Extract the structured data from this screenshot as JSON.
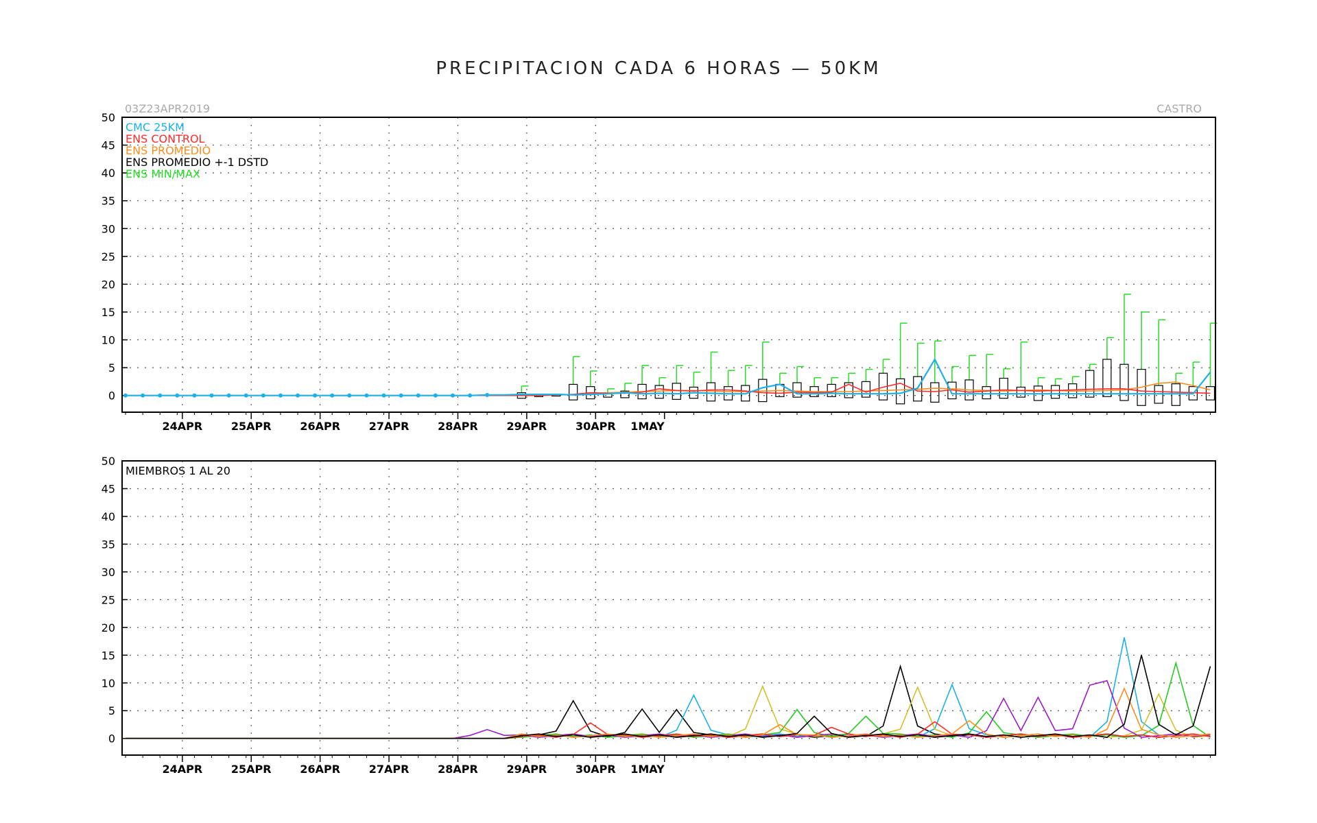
{
  "title": "PRECIPITACION CADA 6 HORAS — 50KM",
  "run_label": "03Z23APR2019",
  "location": "CASTRO",
  "colors": {
    "cmc": "#1ab0e8",
    "control": "#ff2a2a",
    "promedio": "#ff8c1a",
    "dstd": "#000000",
    "minmax": "#22dd22",
    "members": [
      "#000000",
      "#1ab0e8",
      "#d4c02a",
      "#22cc22",
      "#9a1ac8",
      "#ff2a2a",
      "#ff8c1a",
      "#000000",
      "#22cc22",
      "#1ab0e8"
    ]
  },
  "chart_data": [
    {
      "type": "line",
      "panel": "top",
      "ylim": [
        -3,
        50
      ],
      "yticks": [
        0,
        5,
        10,
        15,
        20,
        25,
        30,
        35,
        40,
        45,
        50
      ],
      "xticks": [
        "24APR",
        "25APR",
        "26APR",
        "27APR",
        "28APR",
        "29APR",
        "30APR",
        "1MAY"
      ],
      "x_start": "23APR 03Z",
      "x_step_hours": 6,
      "grid": true,
      "legend": [
        {
          "label": "CMC 25KM",
          "key": "cmc"
        },
        {
          "label": "ENS CONTROL",
          "key": "control"
        },
        {
          "label": "ENS PROMEDIO",
          "key": "promedio"
        },
        {
          "label": "ENS PROMEDIO +-1 DSTD",
          "key": "dstd"
        },
        {
          "label": "ENS MIN/MAX",
          "key": "minmax"
        }
      ],
      "legend_position": "top-left",
      "series": {
        "cmc": [
          0,
          0,
          0,
          0,
          0,
          0,
          0,
          0,
          0,
          0,
          0,
          0,
          0,
          0,
          0,
          0,
          0,
          0,
          0,
          0,
          0,
          0.1,
          0.1,
          0.2,
          0.2,
          0.2,
          0.1,
          0.2,
          0.3,
          0.5,
          0.3,
          0.4,
          0.3,
          0.5,
          0.4,
          0.3,
          0.3,
          1.4,
          2.0,
          0.3,
          0.3,
          0.4,
          0.3,
          0.3,
          0.3,
          0.4,
          1.3,
          6.5,
          0.3,
          0.3,
          0.3,
          0.3,
          0.3,
          0.3,
          0.3,
          0.3,
          0.3,
          0.3,
          0.3,
          0.3,
          0.3,
          0.3,
          0.3,
          4.2
        ],
        "control": [
          0,
          0,
          0,
          0,
          0,
          0,
          0,
          0,
          0,
          0,
          0,
          0,
          0,
          0,
          0,
          0,
          0,
          0,
          0,
          0,
          0,
          0,
          0,
          0,
          0,
          0.1,
          0.2,
          0.5,
          0.4,
          0.4,
          0.6,
          1.2,
          0.9,
          0.8,
          1.0,
          1.0,
          0.8,
          0.5,
          0.4,
          0.6,
          0.5,
          0.6,
          2.0,
          0.6,
          1.5,
          2.2,
          0.8,
          0.7,
          1.0,
          0.6,
          0.8,
          1.0,
          0.9,
          0.8,
          0.9,
          1.0,
          1.1,
          1.2,
          1.2,
          0.8,
          0.7,
          0.6,
          0.5,
          0.4
        ],
        "promedio": [
          0,
          0,
          0,
          0,
          0,
          0,
          0,
          0,
          0,
          0,
          0,
          0,
          0,
          0,
          0,
          0,
          0,
          0,
          0,
          0,
          0,
          0,
          0,
          0.1,
          0.1,
          0.1,
          0.2,
          0.4,
          0.5,
          0.6,
          0.7,
          0.8,
          0.9,
          0.9,
          0.8,
          0.7,
          0.7,
          0.8,
          0.9,
          0.8,
          0.7,
          0.7,
          0.7,
          0.8,
          0.9,
          1.0,
          1.1,
          1.3,
          1.2,
          1.0,
          0.9,
          0.8,
          0.9,
          1.0,
          0.9,
          0.8,
          0.8,
          0.9,
          1.0,
          1.5,
          2.2,
          2.4,
          1.8,
          1.0
        ],
        "box_low": [
          0,
          0,
          0,
          0,
          0,
          0,
          0,
          0,
          0,
          0,
          0,
          0,
          0,
          0,
          0,
          0,
          0,
          0,
          0,
          0,
          0,
          0,
          0,
          -0.5,
          -0.2,
          -0.1,
          -0.8,
          -0.6,
          -0.3,
          -0.4,
          -0.6,
          -0.5,
          -0.7,
          -0.5,
          -1.0,
          -0.8,
          -1.0,
          -1.1,
          -0.2,
          -0.3,
          -0.2,
          -0.2,
          -0.4,
          -0.3,
          -0.8,
          -1.5,
          -1.0,
          -1.2,
          -0.6,
          -0.8,
          -0.6,
          -0.5,
          -0.3,
          -0.9,
          -0.5,
          -0.4,
          -0.3,
          -0.2,
          -0.9,
          -1.8,
          -1.4,
          -1.8,
          -0.8,
          -0.8
        ],
        "box_high": [
          0,
          0,
          0,
          0,
          0,
          0,
          0,
          0,
          0,
          0,
          0,
          0,
          0,
          0,
          0,
          0,
          0,
          0,
          0,
          0,
          0,
          0,
          0,
          0.5,
          0.2,
          0.1,
          2.0,
          1.6,
          0.5,
          0.8,
          2.0,
          1.8,
          2.2,
          1.5,
          2.3,
          1.6,
          1.8,
          2.9,
          2.0,
          2.3,
          1.6,
          2.0,
          2.3,
          2.5,
          4.0,
          3.0,
          3.4,
          2.3,
          2.4,
          2.8,
          1.6,
          3.1,
          1.5,
          1.7,
          1.8,
          2.1,
          4.5,
          6.5,
          5.6,
          4.7,
          1.8,
          2.1,
          1.6,
          1.6
        ],
        "max": [
          0,
          0,
          0,
          0,
          0,
          0,
          0,
          0,
          0,
          0,
          0,
          0,
          0,
          0,
          0,
          0,
          0,
          0,
          0,
          0,
          0,
          0,
          0.1,
          1.7,
          0.2,
          0.2,
          7.0,
          4.4,
          1.2,
          2.2,
          5.4,
          3.2,
          5.4,
          4.2,
          7.8,
          4.5,
          5.4,
          9.6,
          4.0,
          5.2,
          3.2,
          3.2,
          4.0,
          4.7,
          6.5,
          13.0,
          9.4,
          9.8,
          5.2,
          7.2,
          7.4,
          4.8,
          9.6,
          3.2,
          3.0,
          3.4,
          5.6,
          10.4,
          18.2,
          15.0,
          13.6,
          4.0,
          6.0,
          13.0
        ]
      }
    },
    {
      "type": "line",
      "panel": "bottom",
      "ylim": [
        -3,
        50
      ],
      "yticks": [
        0,
        5,
        10,
        15,
        20,
        25,
        30,
        35,
        40,
        45,
        50
      ],
      "xticks": [
        "24APR",
        "25APR",
        "26APR",
        "27APR",
        "28APR",
        "29APR",
        "30APR",
        "1MAY"
      ],
      "x_start": "23APR 03Z",
      "x_step_hours": 6,
      "grid": true,
      "annotation": "MIEMBROS 1 AL 20",
      "series": [
        {
          "peak_times": [
            26,
            30,
            32,
            45
          ],
          "peak_values": [
            6.8,
            5.3,
            5.2,
            13.0
          ],
          "color_index": 0
        },
        {
          "peak_times": [
            33,
            48,
            58
          ],
          "peak_values": [
            7.8,
            9.7,
            18.2
          ],
          "color_index": 1
        },
        {
          "peak_times": [
            37,
            46,
            60
          ],
          "peak_values": [
            9.4,
            9.2,
            8.0
          ],
          "color_index": 2
        },
        {
          "peak_times": [
            39,
            43,
            50,
            61
          ],
          "peak_values": [
            5.2,
            4.0,
            4.8,
            13.6
          ],
          "color_index": 3
        },
        {
          "peak_times": [
            21,
            51,
            53,
            56,
            57
          ],
          "peak_values": [
            1.6,
            7.2,
            7.4,
            9.6,
            10.4
          ],
          "color_index": 4
        },
        {
          "peak_times": [
            27,
            41,
            47
          ],
          "peak_values": [
            2.8,
            2.0,
            3.0
          ],
          "color_index": 5
        },
        {
          "peak_times": [
            38,
            49,
            58
          ],
          "peak_values": [
            2.5,
            3.2,
            9.0
          ],
          "color_index": 6
        },
        {
          "peak_times": [
            40,
            59,
            63
          ],
          "peak_values": [
            4.0,
            15.0,
            13.0
          ],
          "color_index": 7
        }
      ]
    }
  ]
}
